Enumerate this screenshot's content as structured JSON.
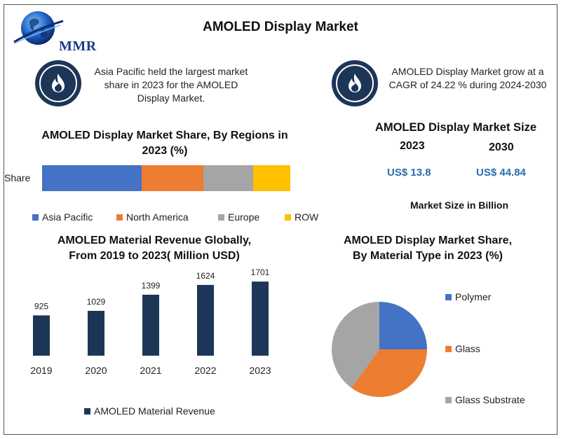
{
  "header": {
    "logo_text": "MMR",
    "title": "AMOLED Display Market"
  },
  "info": [
    {
      "icon": "flame-icon",
      "text_lines": [
        "Asia Pacific held the largest market",
        "share in 2023 for the AMOLED",
        "Display Market."
      ]
    },
    {
      "icon": "flame-icon",
      "text_lines": [
        "AMOLED Display Market grow at a",
        "CAGR of 24.22 % during 2024-2030"
      ]
    }
  ],
  "market_size": {
    "title": "AMOLED Display Market Size",
    "years": [
      "2023",
      "2030"
    ],
    "values": [
      "US$ 13.8",
      "US$ 44.84"
    ],
    "unit_label": "Market Size in Billion",
    "value_color": "#2b6cb0"
  },
  "chart_data": [
    {
      "type": "bar",
      "orientation": "horizontal-stacked",
      "title_lines": [
        "AMOLED Display Market Share, By Regions in",
        "2023 (%)"
      ],
      "categories": [
        "Share"
      ],
      "series": [
        {
          "name": "Asia Pacific",
          "values": [
            40
          ],
          "color": "#4472c4"
        },
        {
          "name": "North America",
          "values": [
            25
          ],
          "color": "#ed7d31"
        },
        {
          "name": "Europe",
          "values": [
            20
          ],
          "color": "#a5a5a5"
        },
        {
          "name": "ROW",
          "values": [
            15
          ],
          "color": "#ffc000"
        }
      ],
      "legend": "bottom"
    },
    {
      "type": "bar",
      "title_lines": [
        "AMOLED  Material Revenue Globally,",
        "From 2019 to 2023( Million USD)"
      ],
      "categories": [
        "2019",
        "2020",
        "2021",
        "2022",
        "2023"
      ],
      "series": [
        {
          "name": "AMOLED Material Revenue",
          "values": [
            925,
            1029,
            1399,
            1624,
            1701
          ],
          "color": "#1d3557"
        }
      ],
      "data_labels": [
        "925",
        "1029",
        "1399",
        "1624",
        "1701"
      ],
      "ylim": [
        0,
        1800
      ],
      "legend": "bottom"
    },
    {
      "type": "pie",
      "title_lines": [
        "AMOLED Display Market Share,",
        "By Material Type in 2023 (%)"
      ],
      "slices": [
        {
          "name": "Polymer",
          "value": 25,
          "color": "#4472c4"
        },
        {
          "name": "Glass",
          "value": 35,
          "color": "#ed7d31"
        },
        {
          "name": "Glass Substrate",
          "value": 40,
          "color": "#a5a5a5"
        }
      ],
      "legend": "right"
    }
  ]
}
